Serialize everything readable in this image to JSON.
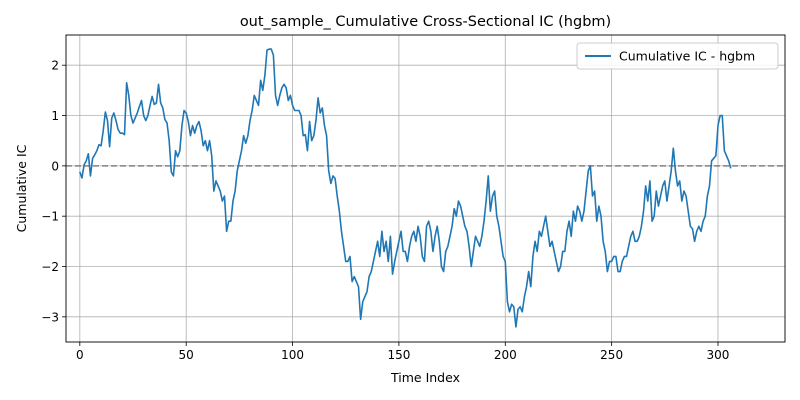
{
  "chart_data": {
    "type": "line",
    "title": "out_sample_ Cumulative Cross-Sectional IC (hgbm)",
    "xlabel": "Time Index",
    "ylabel": "Cumulative IC",
    "xlim": [
      -6.5,
      331.5
    ],
    "ylim": [
      -3.5,
      2.6
    ],
    "xticks": [
      0,
      50,
      100,
      150,
      200,
      250,
      300
    ],
    "yticks": [
      -3,
      -2,
      -1,
      0,
      1,
      2
    ],
    "grid": true,
    "legend_position": "top-right",
    "reference_line": {
      "y": 0,
      "style": "dashed",
      "color": "#808080"
    },
    "series": [
      {
        "name": "Cumulative IC - hgbm",
        "color": "#1f77b4",
        "x_start": 0,
        "x_step": 1,
        "values": [
          -0.12,
          -0.24,
          0.02,
          0.1,
          0.24,
          -0.2,
          0.15,
          0.22,
          0.3,
          0.42,
          0.4,
          0.7,
          1.07,
          0.9,
          0.38,
          0.95,
          1.05,
          0.9,
          0.72,
          0.65,
          0.65,
          0.62,
          1.65,
          1.4,
          1.0,
          0.85,
          0.95,
          1.05,
          1.18,
          1.3,
          1.0,
          0.9,
          1.0,
          1.2,
          1.38,
          1.22,
          1.25,
          1.62,
          1.25,
          1.15,
          0.92,
          0.85,
          0.5,
          -0.12,
          -0.2,
          0.3,
          0.18,
          0.3,
          0.8,
          1.1,
          1.05,
          0.88,
          0.6,
          0.8,
          0.65,
          0.8,
          0.88,
          0.7,
          0.4,
          0.5,
          0.3,
          0.5,
          0.2,
          -0.5,
          -0.3,
          -0.4,
          -0.5,
          -0.7,
          -0.6,
          -1.3,
          -1.1,
          -1.1,
          -0.7,
          -0.5,
          -0.1,
          0.1,
          0.3,
          0.6,
          0.45,
          0.6,
          0.9,
          1.1,
          1.4,
          1.3,
          1.2,
          1.7,
          1.5,
          1.8,
          2.3,
          2.32,
          2.32,
          2.2,
          1.4,
          1.2,
          1.4,
          1.55,
          1.62,
          1.55,
          1.3,
          1.4,
          1.2,
          1.1,
          1.1,
          1.1,
          1.0,
          0.6,
          0.62,
          0.3,
          0.88,
          0.5,
          0.6,
          0.9,
          1.35,
          1.05,
          1.15,
          0.8,
          0.6,
          -0.1,
          -0.35,
          -0.2,
          -0.25,
          -0.6,
          -0.9,
          -1.3,
          -1.6,
          -1.9,
          -1.9,
          -1.8,
          -2.3,
          -2.2,
          -2.3,
          -2.4,
          -3.05,
          -2.7,
          -2.6,
          -2.5,
          -2.2,
          -2.1,
          -1.9,
          -1.7,
          -1.5,
          -1.8,
          -1.3,
          -1.7,
          -1.5,
          -1.9,
          -1.4,
          -2.15,
          -1.9,
          -1.7,
          -1.5,
          -1.3,
          -1.7,
          -1.7,
          -1.9,
          -1.6,
          -1.4,
          -1.3,
          -1.5,
          -1.2,
          -1.4,
          -1.8,
          -1.9,
          -1.2,
          -1.1,
          -1.3,
          -1.7,
          -1.4,
          -1.2,
          -1.5,
          -2.0,
          -2.1,
          -1.7,
          -1.6,
          -1.4,
          -1.2,
          -0.85,
          -1.0,
          -0.7,
          -0.8,
          -1.0,
          -1.2,
          -1.3,
          -1.6,
          -2.0,
          -1.7,
          -1.4,
          -1.5,
          -1.6,
          -1.4,
          -1.1,
          -0.7,
          -0.2,
          -0.9,
          -0.6,
          -0.5,
          -1.0,
          -1.2,
          -1.5,
          -1.8,
          -1.9,
          -2.7,
          -2.9,
          -2.75,
          -2.8,
          -3.2,
          -2.85,
          -2.8,
          -2.9,
          -2.6,
          -2.4,
          -2.1,
          -2.4,
          -1.8,
          -1.5,
          -1.7,
          -1.3,
          -1.4,
          -1.2,
          -1.0,
          -1.3,
          -1.6,
          -1.5,
          -1.7,
          -1.9,
          -2.1,
          -2.0,
          -1.7,
          -1.7,
          -1.3,
          -1.1,
          -1.4,
          -0.9,
          -1.1,
          -0.8,
          -0.9,
          -1.1,
          -0.9,
          -0.5,
          -0.1,
          0.0,
          -0.6,
          -0.5,
          -1.1,
          -0.8,
          -1.0,
          -1.5,
          -1.7,
          -2.1,
          -1.9,
          -1.9,
          -1.8,
          -1.8,
          -2.1,
          -2.1,
          -1.9,
          -1.8,
          -1.8,
          -1.6,
          -1.4,
          -1.3,
          -1.5,
          -1.5,
          -1.4,
          -1.2,
          -0.9,
          -0.4,
          -0.7,
          -0.3,
          -1.1,
          -1.0,
          -0.5,
          -0.8,
          -0.6,
          -0.4,
          -0.3,
          -0.7,
          -0.4,
          -0.1,
          0.35,
          -0.1,
          -0.4,
          -0.3,
          -0.7,
          -0.5,
          -0.6,
          -0.9,
          -1.2,
          -1.25,
          -1.5,
          -1.3,
          -1.2,
          -1.3,
          -1.1,
          -1.0,
          -0.6,
          -0.4,
          0.1,
          0.15,
          0.2,
          0.8,
          1.0,
          1.0,
          0.3,
          0.2,
          0.1,
          -0.05
        ]
      }
    ]
  }
}
